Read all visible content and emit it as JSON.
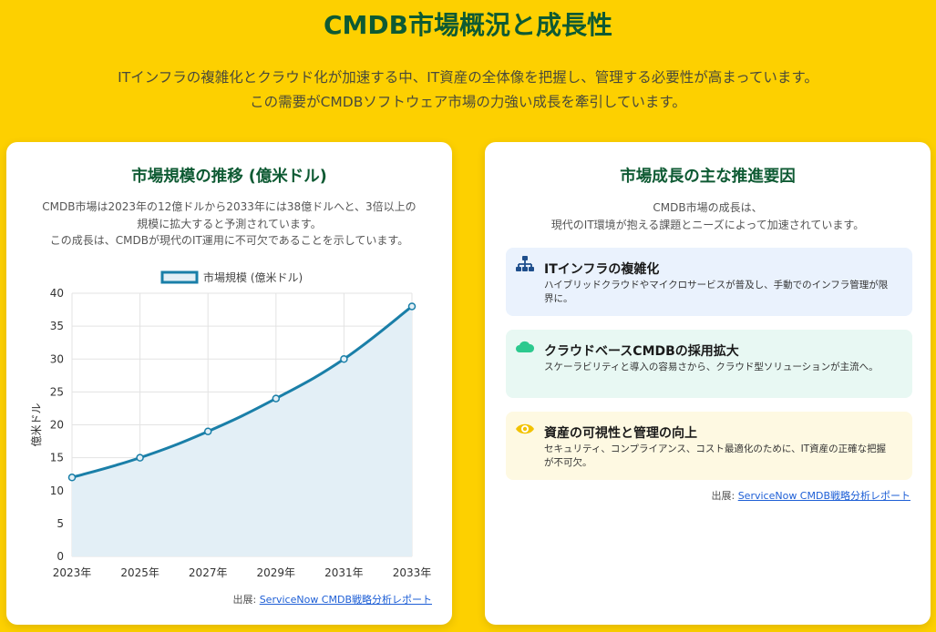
{
  "header": {
    "title": "CMDB市場概況と成長性",
    "intro_line1": "ITインフラの複雑化とクラウド化が加速する中、IT資産の全体像を把握し、管理する必要性が高まっています。",
    "intro_line2": "この需要がCMDBソフトウェア市場の力強い成長を牽引しています。"
  },
  "market_card": {
    "title": "市場規模の推移 (億米ドル)",
    "desc_line1": "CMDB市場は2023年の12億ドルから2033年には38億ドルへと、3倍以上の",
    "desc_line2": "規模に拡大すると予測されています。",
    "desc_line3": "この成長は、CMDBが現代のIT運用に不可欠であることを示しています。",
    "source_prefix": "出展: ",
    "source_link": "ServiceNow CMDB戦略分析レポート"
  },
  "drivers_card": {
    "title": "市場成長の主な推進要因",
    "desc_line1": "CMDB市場の成長は、",
    "desc_line2": "現代のIT環境が抱える課題とニーズによって加速されています。",
    "drivers": [
      {
        "icon": "sitemap-icon",
        "title": "ITインフラの複雑化",
        "desc": "ハイブリッドクラウドやマイクロサービスが普及し、手動でのインフラ管理が限界に。",
        "bg": "#EAF2FD",
        "icon_color": "#1E4E8C"
      },
      {
        "icon": "cloud-icon",
        "title": "クラウドベースCMDBの採用拡大",
        "desc": "スケーラビリティと導入の容易さから、クラウド型ソリューションが主流へ。",
        "bg": "#E8F8F3",
        "icon_color": "#2CC98E"
      },
      {
        "icon": "eye-icon",
        "title": "資産の可視性と管理の向上",
        "desc": "セキュリティ、コンプライアンス、コスト最適化のために、IT資産の正確な把握が不可欠。",
        "bg": "#FEF9E2",
        "icon_color": "#F2C200"
      }
    ],
    "source_prefix": "出展: ",
    "source_link": "ServiceNow CMDB戦略分析レポート"
  },
  "colors": {
    "background": "#FDD000",
    "heading": "#0E5A33",
    "line": "#1A7FA8",
    "area": "#E3EFF6"
  },
  "chart_data": {
    "type": "line",
    "x": [
      "2023年",
      "2025年",
      "2027年",
      "2029年",
      "2031年",
      "2033年"
    ],
    "series": [
      {
        "name": "市場規模 (億米ドル)",
        "values": [
          12,
          15,
          19,
          24,
          30,
          38
        ],
        "fill": true
      }
    ],
    "ylabel": "億米ドル",
    "xlabel": "",
    "ylim": [
      0,
      40
    ],
    "yticks": [
      0,
      5,
      10,
      15,
      20,
      25,
      30,
      35,
      40
    ],
    "grid": true,
    "legend": "top"
  }
}
